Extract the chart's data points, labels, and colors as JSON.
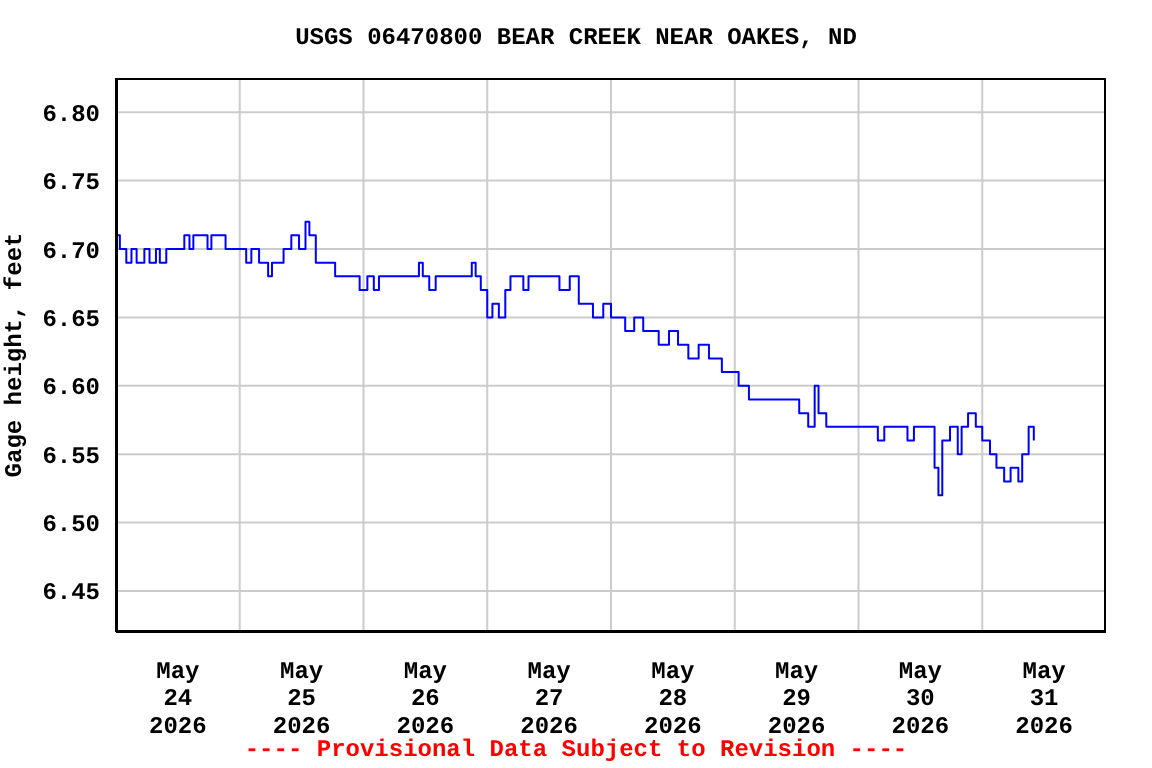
{
  "chart_data": {
    "type": "step",
    "title": "USGS 06470800 BEAR CREEK NEAR OAKES, ND",
    "ylabel": "Gage height, feet",
    "annotations": [
      "---- Provisional Data Subject to Revision ----"
    ],
    "x": [
      "2026-05-24T00:00",
      "2026-05-24T00:45",
      "2026-05-24T02:00",
      "2026-05-24T03:00",
      "2026-05-24T04:00",
      "2026-05-24T05:30",
      "2026-05-24T06:30",
      "2026-05-24T07:45",
      "2026-05-24T08:30",
      "2026-05-24T09:45",
      "2026-05-24T13:15",
      "2026-05-24T14:15",
      "2026-05-24T15:00",
      "2026-05-24T17:45",
      "2026-05-24T18:30",
      "2026-05-24T21:15",
      "2026-05-25T01:15",
      "2026-05-25T02:15",
      "2026-05-25T03:45",
      "2026-05-25T05:30",
      "2026-05-25T06:15",
      "2026-05-25T08:30",
      "2026-05-25T10:00",
      "2026-05-25T11:30",
      "2026-05-25T12:45",
      "2026-05-25T13:30",
      "2026-05-25T14:45",
      "2026-05-25T18:30",
      "2026-05-25T23:15",
      "2026-05-26T00:45",
      "2026-05-26T02:00",
      "2026-05-26T03:00",
      "2026-05-26T10:45",
      "2026-05-26T11:30",
      "2026-05-26T12:45",
      "2026-05-26T14:00",
      "2026-05-26T21:00",
      "2026-05-26T21:45",
      "2026-05-26T22:45",
      "2026-05-27T00:00",
      "2026-05-27T01:00",
      "2026-05-27T02:15",
      "2026-05-27T03:30",
      "2026-05-27T04:30",
      "2026-05-27T07:00",
      "2026-05-27T08:00",
      "2026-05-27T14:00",
      "2026-05-27T16:00",
      "2026-05-27T17:45",
      "2026-05-27T20:30",
      "2026-05-27T22:30",
      "2026-05-28T00:00",
      "2026-05-28T02:45",
      "2026-05-28T04:30",
      "2026-05-28T06:15",
      "2026-05-28T09:15",
      "2026-05-28T11:15",
      "2026-05-28T13:00",
      "2026-05-28T15:00",
      "2026-05-28T17:00",
      "2026-05-28T19:00",
      "2026-05-28T21:30",
      "2026-05-29T00:45",
      "2026-05-29T02:45",
      "2026-05-29T12:30",
      "2026-05-29T14:15",
      "2026-05-29T15:30",
      "2026-05-29T16:15",
      "2026-05-29T17:45",
      "2026-05-30T03:45",
      "2026-05-30T05:00",
      "2026-05-30T09:30",
      "2026-05-30T10:45",
      "2026-05-30T14:45",
      "2026-05-30T15:30",
      "2026-05-30T16:15",
      "2026-05-30T17:45",
      "2026-05-30T19:15",
      "2026-05-30T20:00",
      "2026-05-30T21:15",
      "2026-05-30T22:45",
      "2026-05-31T00:00",
      "2026-05-31T01:30",
      "2026-05-31T02:45",
      "2026-05-31T04:15",
      "2026-05-31T05:30",
      "2026-05-31T07:00",
      "2026-05-31T07:45",
      "2026-05-31T09:00",
      "2026-05-31T10:00"
    ],
    "series": [
      {
        "color": "#0000ff",
        "values": [
          6.71,
          6.7,
          6.69,
          6.7,
          6.69,
          6.7,
          6.69,
          6.7,
          6.69,
          6.7,
          6.71,
          6.7,
          6.71,
          6.7,
          6.71,
          6.7,
          6.69,
          6.7,
          6.69,
          6.68,
          6.69,
          6.7,
          6.71,
          6.7,
          6.72,
          6.71,
          6.69,
          6.68,
          6.67,
          6.68,
          6.67,
          6.68,
          6.69,
          6.68,
          6.67,
          6.68,
          6.69,
          6.68,
          6.67,
          6.65,
          6.66,
          6.65,
          6.67,
          6.68,
          6.67,
          6.68,
          6.67,
          6.68,
          6.66,
          6.65,
          6.66,
          6.65,
          6.64,
          6.65,
          6.64,
          6.63,
          6.64,
          6.63,
          6.62,
          6.63,
          6.62,
          6.61,
          6.6,
          6.59,
          6.58,
          6.57,
          6.6,
          6.58,
          6.57,
          6.56,
          6.57,
          6.56,
          6.57,
          6.54,
          6.52,
          6.56,
          6.57,
          6.55,
          6.57,
          6.58,
          6.57,
          6.56,
          6.55,
          6.54,
          6.53,
          6.54,
          6.53,
          6.55,
          6.57,
          6.56
        ]
      }
    ],
    "xlim": [
      "2026-05-24T00:00",
      "2026-06-01T00:00"
    ],
    "xticks": [
      {
        "value": "2026-05-24T12:00",
        "label": "May\n24\n2026"
      },
      {
        "value": "2026-05-25T00:00",
        "label": null
      },
      {
        "value": "2026-05-25T12:00",
        "label": "May\n25\n2026"
      },
      {
        "value": "2026-05-26T00:00",
        "label": null
      },
      {
        "value": "2026-05-26T12:00",
        "label": "May\n26\n2026"
      },
      {
        "value": "2026-05-27T00:00",
        "label": null
      },
      {
        "value": "2026-05-27T12:00",
        "label": "May\n27\n2026"
      },
      {
        "value": "2026-05-28T00:00",
        "label": null
      },
      {
        "value": "2026-05-28T12:00",
        "label": "May\n28\n2026"
      },
      {
        "value": "2026-05-29T00:00",
        "label": null
      },
      {
        "value": "2026-05-29T12:00",
        "label": "May\n29\n2026"
      },
      {
        "value": "2026-05-30T00:00",
        "label": null
      },
      {
        "value": "2026-05-30T12:00",
        "label": "May\n30\n2026"
      },
      {
        "value": "2026-05-31T00:00",
        "label": null
      },
      {
        "value": "2026-05-31T12:00",
        "label": "May\n31\n2026"
      }
    ],
    "ylim": [
      6.42,
      6.825
    ],
    "yticks": [
      6.45,
      {
        "value": 6.5,
        "label": "6.50"
      },
      6.55,
      {
        "value": 6.6,
        "label": "6.60"
      },
      6.65,
      {
        "value": 6.7,
        "label": "6.70"
      },
      6.75,
      {
        "value": 6.8,
        "label": "6.80"
      }
    ],
    "grid": true,
    "marker": "none",
    "line_style": "solid"
  }
}
